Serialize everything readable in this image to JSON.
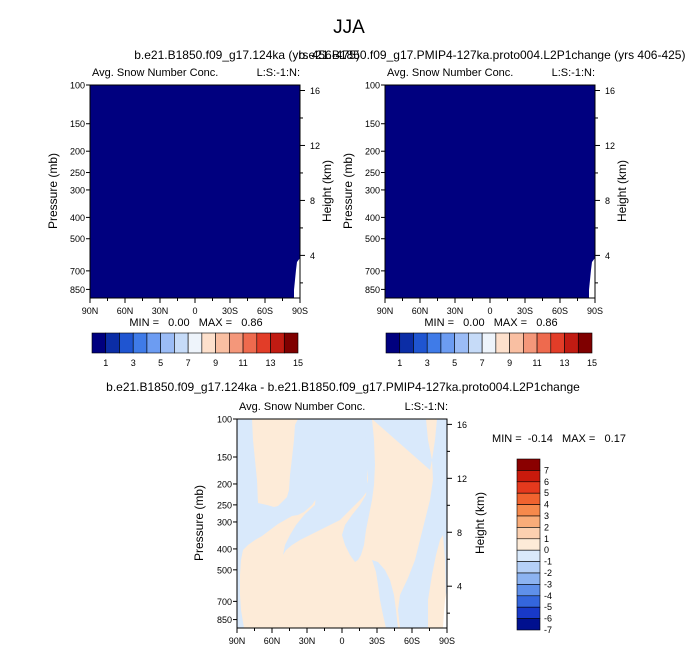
{
  "figure_title": "JJA",
  "chart_data": [
    {
      "type": "heatmap",
      "title": "b.e21.B1850.f09_g17.124ka (yrs 456-475)",
      "subtitle_left": "Avg. Snow Number Conc.",
      "subtitle_right": "L:S:-1:N:",
      "ylabel": "Pressure (mb)",
      "ylabel_right": "Height (km)",
      "x_ticks": [
        "90N",
        "60N",
        "30N",
        "0",
        "30S",
        "60S",
        "90S"
      ],
      "y_ticks": [
        100,
        150,
        200,
        250,
        300,
        400,
        500,
        700,
        850
      ],
      "y_ticks_right": [
        16,
        12,
        8,
        4
      ],
      "min_max_text": "MIN =   0.00   MAX =   0.86",
      "colorbar_labels": [
        "1",
        "3",
        "5",
        "7",
        "9",
        "11",
        "13",
        "15"
      ],
      "fill": "uniform, lowest contour level (< 1)"
    },
    {
      "type": "heatmap",
      "title": "b.e21.B1850.f09_g17.PMIP4-127ka.proto004.L2P1change (yrs 406-425)",
      "subtitle_left": "Avg. Snow Number Conc.",
      "subtitle_right": "L:S:-1:N:",
      "ylabel": "Pressure (mb)",
      "ylabel_right": "Height (km)",
      "x_ticks": [
        "90N",
        "60N",
        "30N",
        "0",
        "30S",
        "60S",
        "90S"
      ],
      "y_ticks": [
        100,
        150,
        200,
        250,
        300,
        400,
        500,
        700,
        850
      ],
      "y_ticks_right": [
        16,
        12,
        8,
        4
      ],
      "min_max_text": "MIN =   0.00   MAX =   0.86",
      "colorbar_labels": [
        "1",
        "3",
        "5",
        "7",
        "9",
        "11",
        "13",
        "15"
      ],
      "fill": "uniform, lowest contour level (< 1)"
    },
    {
      "type": "heatmap",
      "title": "b.e21.B1850.f09_g17.124ka - b.e21.B1850.f09_g17.PMIP4-127ka.proto004.L2P1change",
      "subtitle_left": "Avg. Snow Number Conc.",
      "subtitle_right": "L:S:-1:N:",
      "ylabel": "Pressure (mb)",
      "ylabel_right": "Height (km)",
      "x_ticks": [
        "90N",
        "60N",
        "30N",
        "0",
        "30S",
        "60S",
        "90S"
      ],
      "y_ticks": [
        100,
        150,
        200,
        250,
        300,
        400,
        500,
        700,
        850
      ],
      "y_ticks_right": [
        16,
        12,
        8,
        4
      ],
      "min_max_text": "MIN =  -0.14   MAX =   0.17",
      "colorbar_labels": [
        "7",
        "6",
        "5",
        "4",
        "3",
        "2",
        "1",
        "0",
        "-1",
        "-2",
        "-3",
        "-4",
        "-5",
        "-6",
        "-7"
      ],
      "fill": "two regions: slightly positive (0 to 1) and slightly negative (-1 to 0)"
    }
  ],
  "colors": {
    "abs_scale": [
      "#00007f",
      "#0b2da6",
      "#1f55d1",
      "#3f7be8",
      "#6c9cf2",
      "#9bbcf6",
      "#c6dbf8",
      "#eef4fb",
      "#fde0cc",
      "#f9bfa2",
      "#f4977a",
      "#ee6a4e",
      "#e23d28",
      "#c11b12",
      "#7f0000"
    ],
    "diff_scale": [
      "#8a0000",
      "#c91a0c",
      "#e5391d",
      "#f0632f",
      "#f6894c",
      "#f9ac79",
      "#fcd0b0",
      "#fdebd8",
      "#d9e9fb",
      "#b5d0f7",
      "#8cb3f1",
      "#5f90ea",
      "#3466dd",
      "#1839c8",
      "#00108f"
    ],
    "field_uniform": "#00007f",
    "diff_positive": "#fdebd8",
    "diff_negative": "#d9e9fb"
  }
}
